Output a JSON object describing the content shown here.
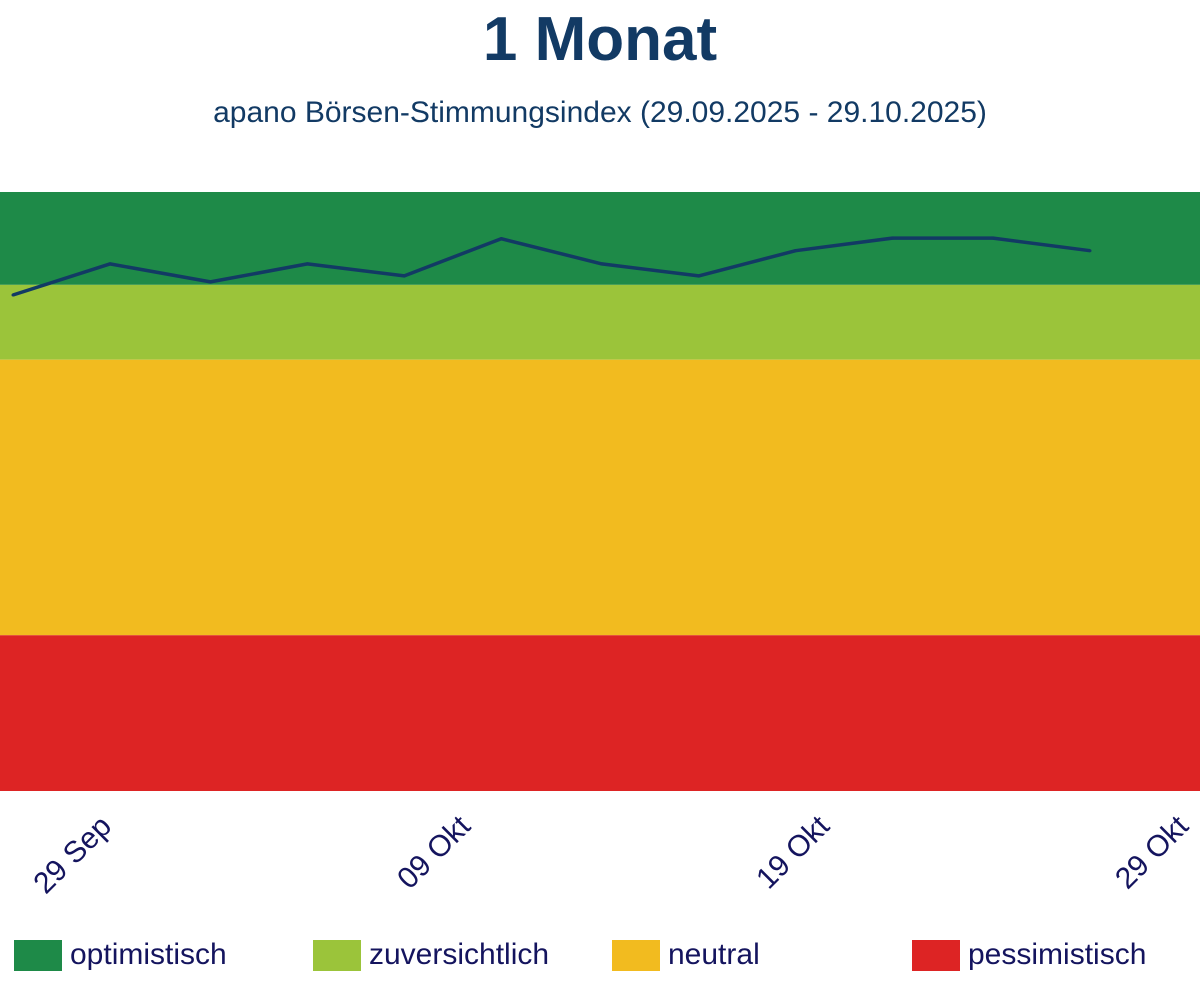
{
  "header": {
    "title": "1 Monat",
    "subtitle": "apano Börsen-Stimmungsindex (29.09.2025 - 29.10.2025)"
  },
  "chart_data": {
    "type": "line",
    "title": "1 Monat",
    "subtitle": "apano Börsen-Stimmungsindex (29.09.2025 - 29.10.2025)",
    "xlabel": "",
    "ylabel": "",
    "xlim_days": [
      0,
      30
    ],
    "ylim": [
      0,
      100
    ],
    "grid": false,
    "x_ticks": [
      {
        "day": 0,
        "label": "29 Sep"
      },
      {
        "day": 10,
        "label": "09 Okt"
      },
      {
        "day": 20,
        "label": "19 Okt"
      },
      {
        "day": 30,
        "label": "29 Okt"
      }
    ],
    "bands": [
      {
        "name": "optimistisch",
        "from": 84.5,
        "to": 100,
        "color": "#1e8a48"
      },
      {
        "name": "zuversichtlich",
        "from": 72,
        "to": 84.5,
        "color": "#9bc43a"
      },
      {
        "name": "neutral",
        "from": 26,
        "to": 72,
        "color": "#f2bb1f"
      },
      {
        "name": "pessimistisch",
        "from": 0,
        "to": 26,
        "color": "#dd2424"
      }
    ],
    "series": [
      {
        "name": "apano Börsen-Stimmungsindex",
        "color": "#123a64",
        "x_days": [
          0,
          2.7,
          5.5,
          8.2,
          10.9,
          13.6,
          16.4,
          19.1,
          21.8,
          24.5,
          27.3,
          30
        ],
        "values": [
          82.8,
          88.0,
          85.0,
          88.0,
          86.0,
          92.2,
          88.0,
          86.0,
          90.2,
          92.3,
          92.3,
          90.2
        ]
      }
    ],
    "legend": {
      "placement": "bottom",
      "entries": [
        {
          "label": "optimistisch",
          "color": "#1e8a48"
        },
        {
          "label": "zuversichtlich",
          "color": "#9bc43a"
        },
        {
          "label": "neutral",
          "color": "#f2bb1f"
        },
        {
          "label": "pessimistisch",
          "color": "#dd2424"
        }
      ]
    }
  }
}
